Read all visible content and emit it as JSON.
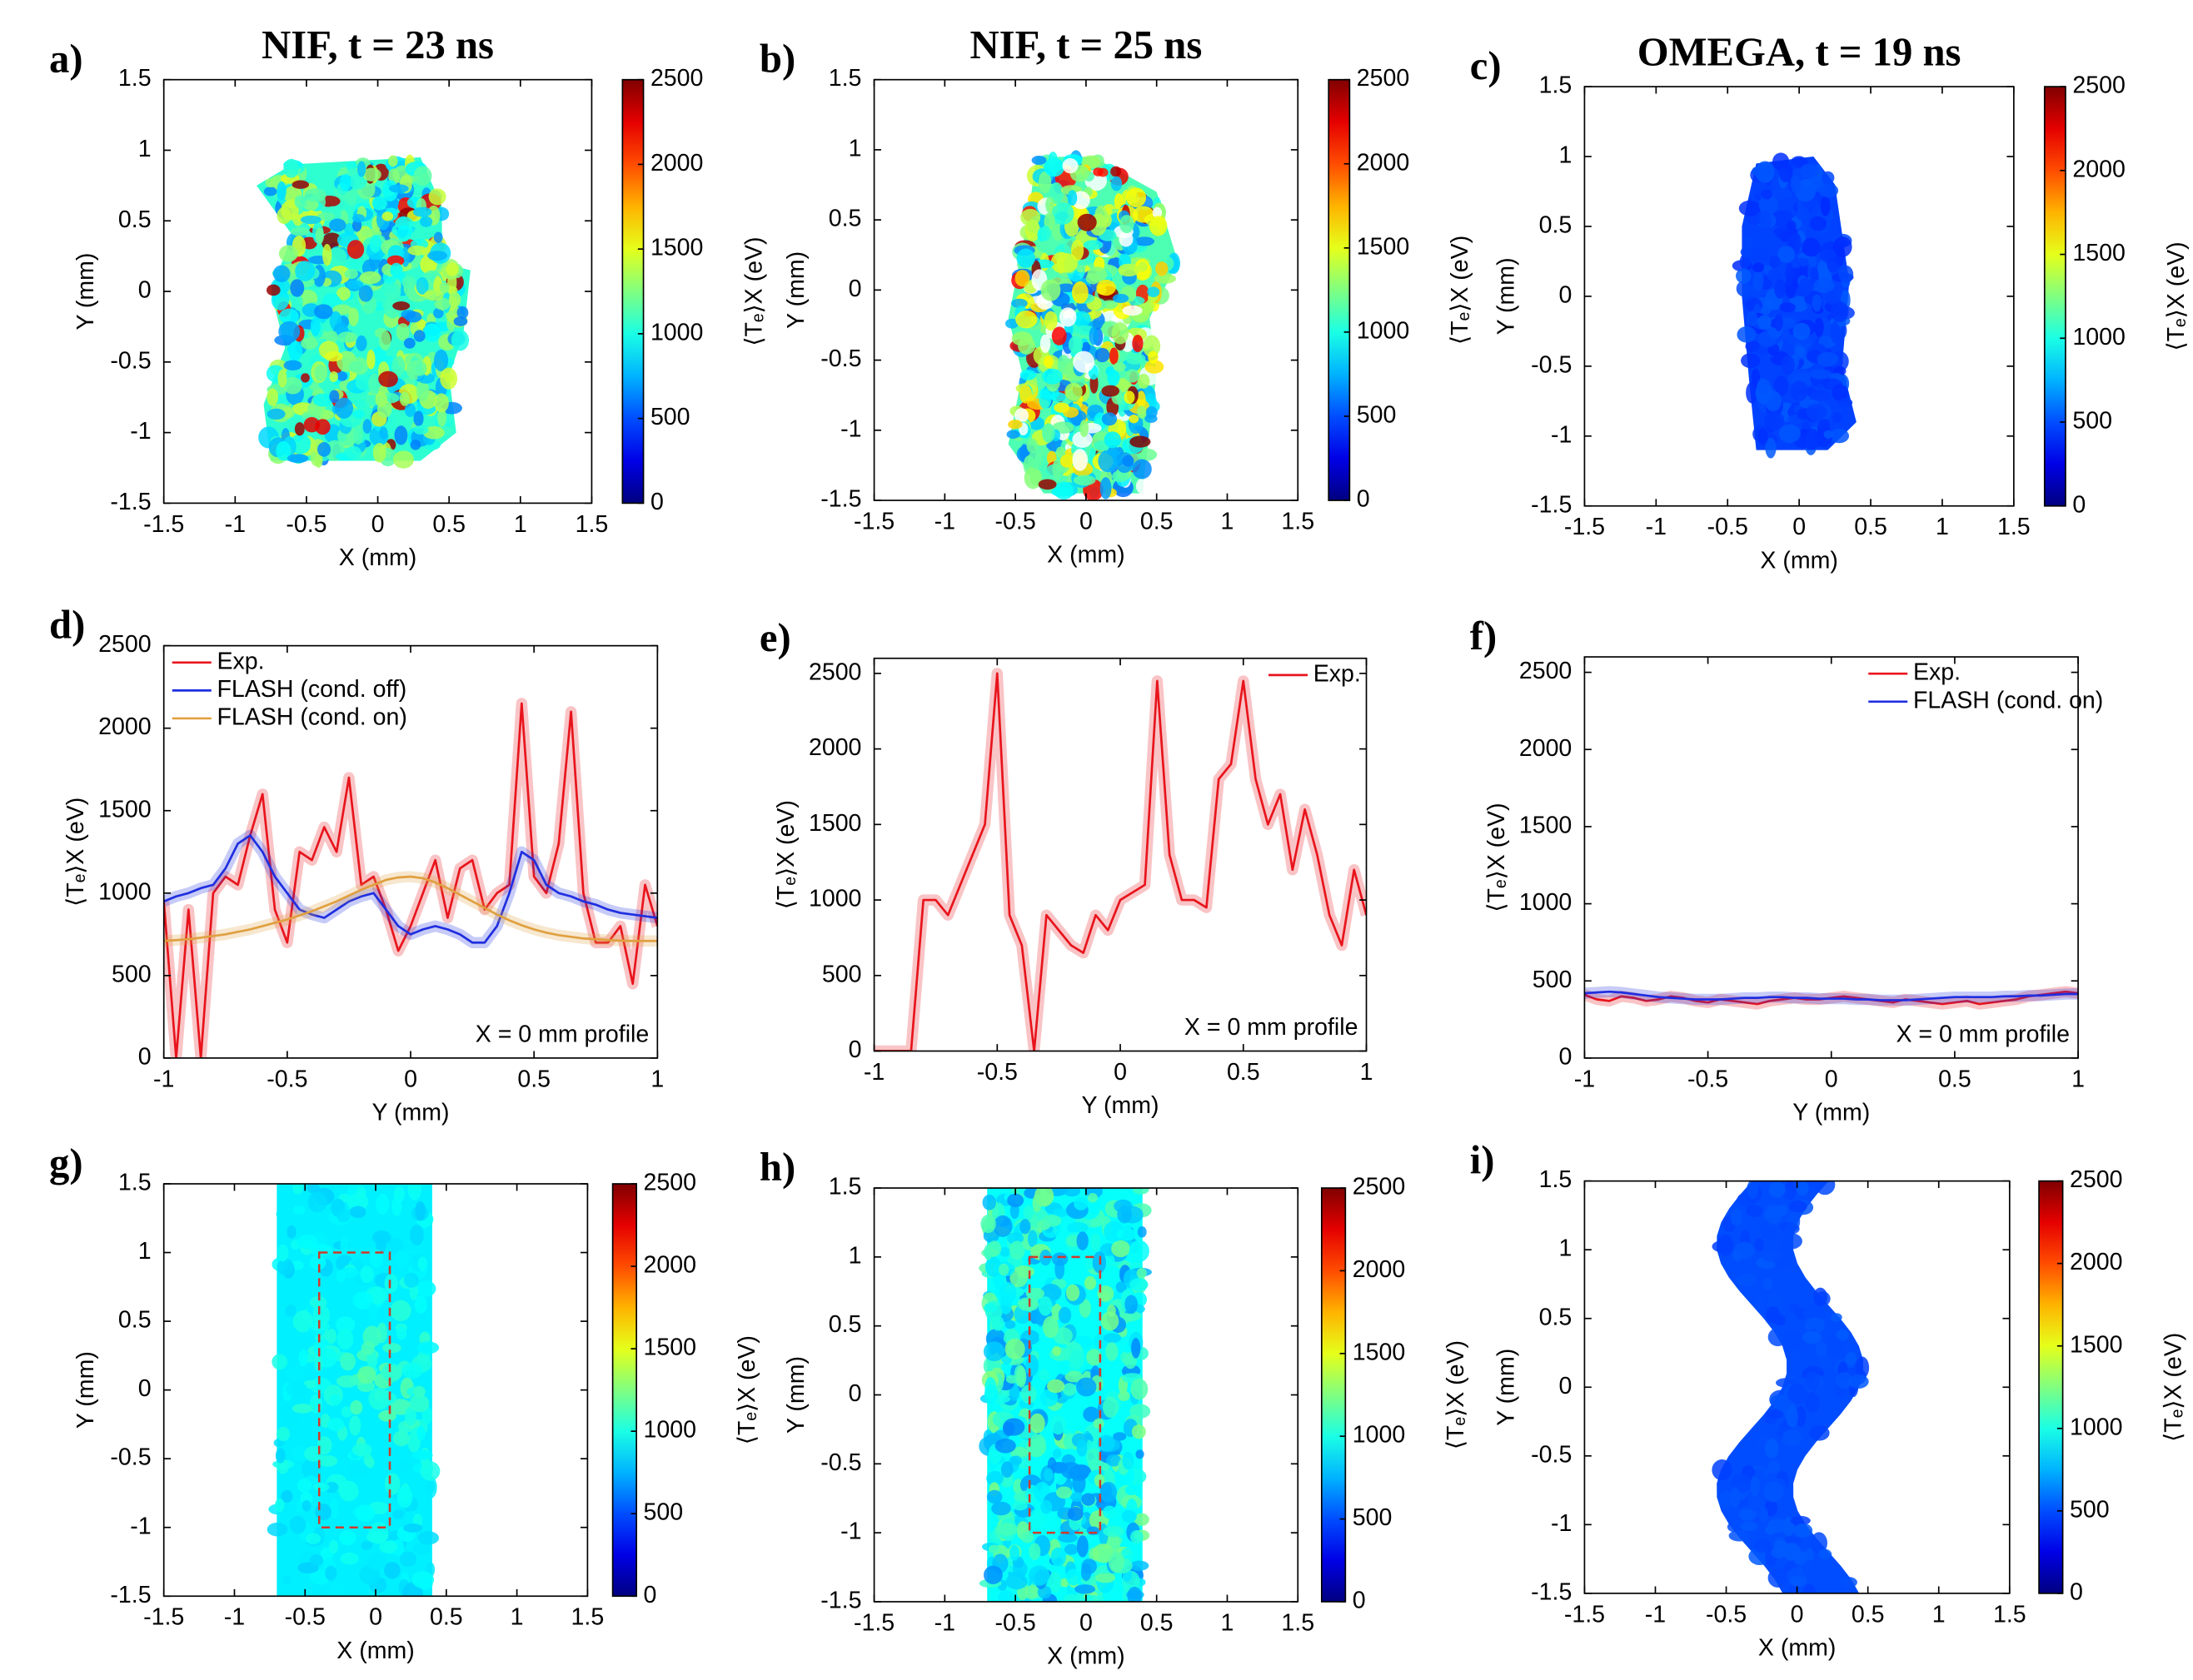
{
  "chart_data": [
    {
      "type": "heatmap",
      "panel_label": "a)",
      "title": "NIF, t = 23 ns",
      "x_label": "X (mm)",
      "y_label": "Y (mm)",
      "xlim": [
        -1.5,
        1.5
      ],
      "ylim": [
        -1.5,
        1.5
      ],
      "xticks": [
        -1.5,
        -1,
        -0.5,
        0,
        0.5,
        1,
        1.5
      ],
      "yticks": [
        -1.5,
        -1,
        -0.5,
        0,
        0.5,
        1,
        1.5
      ],
      "colorbar": {
        "label": "⟨Tₑ⟩X (eV)",
        "lim": [
          0,
          2500
        ],
        "ticks": [
          0,
          500,
          1000,
          1500,
          2000,
          2500
        ],
        "colormap": "jet"
      }
    },
    {
      "type": "heatmap",
      "panel_label": "b)",
      "title": "NIF, t = 25 ns",
      "x_label": "X (mm)",
      "y_label": "Y (mm)",
      "xlim": [
        -1.5,
        1.5
      ],
      "ylim": [
        -1.5,
        1.5
      ],
      "xticks": [
        -1.5,
        -1,
        -0.5,
        0,
        0.5,
        1,
        1.5
      ],
      "yticks": [
        -1.5,
        -1,
        -0.5,
        0,
        0.5,
        1,
        1.5
      ],
      "colorbar": {
        "label": "⟨Tₑ⟩X (eV)",
        "lim": [
          0,
          2500
        ],
        "ticks": [
          0,
          500,
          1000,
          1500,
          2000,
          2500
        ],
        "colormap": "jet"
      }
    },
    {
      "type": "heatmap",
      "panel_label": "c)",
      "title": "OMEGA, t = 19 ns",
      "x_label": "X (mm)",
      "y_label": "Y (mm)",
      "xlim": [
        -1.5,
        1.5
      ],
      "ylim": [
        -1.5,
        1.5
      ],
      "xticks": [
        -1.5,
        -1,
        -0.5,
        0,
        0.5,
        1,
        1.5
      ],
      "yticks": [
        -1.5,
        -1,
        -0.5,
        0,
        0.5,
        1,
        1.5
      ],
      "colorbar": {
        "label": "⟨Tₑ⟩X (eV)",
        "lim": [
          0,
          2500
        ],
        "ticks": [
          0,
          500,
          1000,
          1500,
          2000,
          2500
        ],
        "colormap": "jet"
      }
    },
    {
      "type": "line",
      "panel_label": "d)",
      "x_label": "Y (mm)",
      "y_label": "⟨Tₑ⟩X (eV)",
      "annotation": "X = 0 mm profile",
      "legend": "upper left",
      "x": [
        -1,
        -0.95,
        -0.9,
        -0.85,
        -0.8,
        -0.75,
        -0.7,
        -0.65,
        -0.6,
        -0.55,
        -0.5,
        -0.45,
        -0.4,
        -0.35,
        -0.3,
        -0.25,
        -0.2,
        -0.15,
        -0.1,
        -0.05,
        0,
        0.05,
        0.1,
        0.15,
        0.2,
        0.25,
        0.3,
        0.35,
        0.4,
        0.45,
        0.5,
        0.55,
        0.6,
        0.65,
        0.7,
        0.75,
        0.8,
        0.85,
        0.9,
        0.95,
        1
      ],
      "xlim": [
        -1,
        1
      ],
      "xticks": [
        -1,
        -0.5,
        0,
        0.5,
        1
      ],
      "ylim": [
        0,
        2500
      ],
      "yticks": [
        0,
        500,
        1000,
        1500,
        2000,
        2500
      ],
      "series": [
        {
          "name": "Exp.",
          "color": "#e8141c",
          "values": [
            950,
            0,
            900,
            0,
            1000,
            1100,
            1050,
            1350,
            1600,
            900,
            700,
            1250,
            1200,
            1400,
            1250,
            1700,
            1050,
            1100,
            900,
            650,
            800,
            1000,
            1200,
            850,
            1150,
            1200,
            900,
            1000,
            1050,
            2150,
            1100,
            1000,
            1300,
            2100,
            1000,
            700,
            700,
            800,
            450,
            1050,
            800
          ]
        },
        {
          "name": "FLASH (cond. off)",
          "color": "#1f2ee0",
          "values": [
            950,
            980,
            1000,
            1030,
            1050,
            1150,
            1300,
            1350,
            1250,
            1100,
            1000,
            900,
            870,
            850,
            900,
            950,
            980,
            1000,
            900,
            800,
            750,
            780,
            800,
            780,
            750,
            700,
            700,
            800,
            1000,
            1250,
            1200,
            1050,
            1000,
            980,
            950,
            930,
            900,
            880,
            870,
            860,
            850
          ]
        },
        {
          "name": "FLASH (cond. on)",
          "color": "#e0a040",
          "values": [
            710,
            715,
            720,
            730,
            740,
            750,
            765,
            780,
            800,
            820,
            840,
            865,
            890,
            920,
            950,
            985,
            1020,
            1050,
            1080,
            1095,
            1100,
            1090,
            1065,
            1030,
            990,
            950,
            910,
            870,
            835,
            805,
            780,
            760,
            745,
            735,
            725,
            720,
            715,
            712,
            710,
            710,
            710
          ]
        }
      ]
    },
    {
      "type": "line",
      "panel_label": "e)",
      "x_label": "Y (mm)",
      "y_label": "⟨Tₑ⟩X (eV)",
      "annotation": "X = 0 mm profile",
      "legend": "upper right",
      "x": [
        -1,
        -0.95,
        -0.9,
        -0.85,
        -0.8,
        -0.75,
        -0.7,
        -0.65,
        -0.6,
        -0.55,
        -0.5,
        -0.45,
        -0.4,
        -0.35,
        -0.3,
        -0.25,
        -0.2,
        -0.15,
        -0.1,
        -0.05,
        0,
        0.05,
        0.1,
        0.15,
        0.2,
        0.25,
        0.3,
        0.35,
        0.4,
        0.45,
        0.5,
        0.55,
        0.6,
        0.65,
        0.7,
        0.75,
        0.8,
        0.85,
        0.9,
        0.95,
        1
      ],
      "xlim": [
        -1,
        1
      ],
      "xticks": [
        -1,
        -0.5,
        0,
        0.5,
        1
      ],
      "ylim": [
        0,
        2600
      ],
      "yticks": [
        0,
        500,
        1000,
        1500,
        2000,
        2500
      ],
      "series": [
        {
          "name": "Exp.",
          "color": "#e8141c",
          "values": [
            0,
            0,
            0,
            0,
            1000,
            1000,
            900,
            1100,
            1300,
            1500,
            2500,
            900,
            700,
            0,
            900,
            800,
            700,
            650,
            900,
            800,
            1000,
            1050,
            1100,
            2450,
            1300,
            1000,
            1000,
            950,
            1800,
            1900,
            2450,
            1800,
            1500,
            1700,
            1200,
            1600,
            1300,
            900,
            700,
            1200,
            900
          ]
        }
      ]
    },
    {
      "type": "line",
      "panel_label": "f)",
      "x_label": "Y (mm)",
      "y_label": "⟨Tₑ⟩X (eV)",
      "annotation": "X = 0 mm profile",
      "legend": "upper right",
      "x": [
        -1,
        -0.95,
        -0.9,
        -0.85,
        -0.8,
        -0.75,
        -0.7,
        -0.65,
        -0.6,
        -0.55,
        -0.5,
        -0.45,
        -0.4,
        -0.35,
        -0.3,
        -0.25,
        -0.2,
        -0.15,
        -0.1,
        -0.05,
        0,
        0.05,
        0.1,
        0.15,
        0.2,
        0.25,
        0.3,
        0.35,
        0.4,
        0.45,
        0.5,
        0.55,
        0.6,
        0.65,
        0.7,
        0.75,
        0.8,
        0.85,
        0.9,
        0.95,
        1
      ],
      "xlim": [
        -1,
        1
      ],
      "xticks": [
        -1,
        -0.5,
        0,
        0.5,
        1
      ],
      "ylim": [
        0,
        2600
      ],
      "yticks": [
        0,
        500,
        1000,
        1500,
        2000,
        2500
      ],
      "series": [
        {
          "name": "Exp.",
          "color": "#e8141c",
          "values": [
            410,
            380,
            370,
            400,
            390,
            370,
            380,
            400,
            390,
            370,
            360,
            380,
            370,
            360,
            350,
            370,
            380,
            390,
            380,
            380,
            390,
            400,
            390,
            380,
            370,
            360,
            380,
            370,
            360,
            350,
            360,
            370,
            350,
            360,
            370,
            380,
            400,
            410,
            420,
            430,
            420
          ]
        },
        {
          "name": "FLASH (cond. on)",
          "color": "#1f2ee0",
          "values": [
            420,
            425,
            430,
            425,
            415,
            405,
            395,
            390,
            385,
            380,
            380,
            380,
            385,
            390,
            390,
            395,
            395,
            390,
            390,
            385,
            385,
            385,
            380,
            380,
            375,
            375,
            375,
            380,
            385,
            390,
            395,
            395,
            395,
            395,
            400,
            400,
            405,
            405,
            410,
            415,
            415
          ]
        }
      ]
    },
    {
      "type": "heatmap",
      "panel_label": "g)",
      "x_label": "X (mm)",
      "y_label": "Y (mm)",
      "xlim": [
        -1.5,
        1.5
      ],
      "ylim": [
        -1.5,
        1.5
      ],
      "xticks": [
        -1.5,
        -1,
        -0.5,
        0,
        0.5,
        1,
        1.5
      ],
      "yticks": [
        -1.5,
        -1,
        -0.5,
        0,
        0.5,
        1,
        1.5
      ],
      "colorbar": {
        "label": "⟨Tₑ⟩X (eV)",
        "lim": [
          0,
          2500
        ],
        "ticks": [
          0,
          500,
          1000,
          1500,
          2000,
          2500
        ],
        "colormap": "jet"
      }
    },
    {
      "type": "heatmap",
      "panel_label": "h)",
      "x_label": "X (mm)",
      "y_label": "Y (mm)",
      "xlim": [
        -1.5,
        1.5
      ],
      "ylim": [
        -1.5,
        1.5
      ],
      "xticks": [
        -1.5,
        -1,
        -0.5,
        0,
        0.5,
        1,
        1.5
      ],
      "yticks": [
        -1.5,
        -1,
        -0.5,
        0,
        0.5,
        1,
        1.5
      ],
      "colorbar": {
        "label": "⟨Tₑ⟩X (eV)",
        "lim": [
          0,
          2500
        ],
        "ticks": [
          0,
          500,
          1000,
          1500,
          2000,
          2500
        ],
        "colormap": "jet"
      }
    },
    {
      "type": "heatmap",
      "panel_label": "i)",
      "x_label": "X (mm)",
      "y_label": "Y (mm)",
      "xlim": [
        -1.5,
        1.5
      ],
      "ylim": [
        -1.5,
        1.5
      ],
      "xticks": [
        -1.5,
        -1,
        -0.5,
        0,
        0.5,
        1,
        1.5
      ],
      "yticks": [
        -1.5,
        -1,
        -0.5,
        0,
        0.5,
        1,
        1.5
      ],
      "colorbar": {
        "label": "⟨Tₑ⟩X (eV)",
        "lim": [
          0,
          2500
        ],
        "ticks": [
          0,
          500,
          1000,
          1500,
          2000,
          2500
        ],
        "colormap": "jet"
      }
    }
  ]
}
